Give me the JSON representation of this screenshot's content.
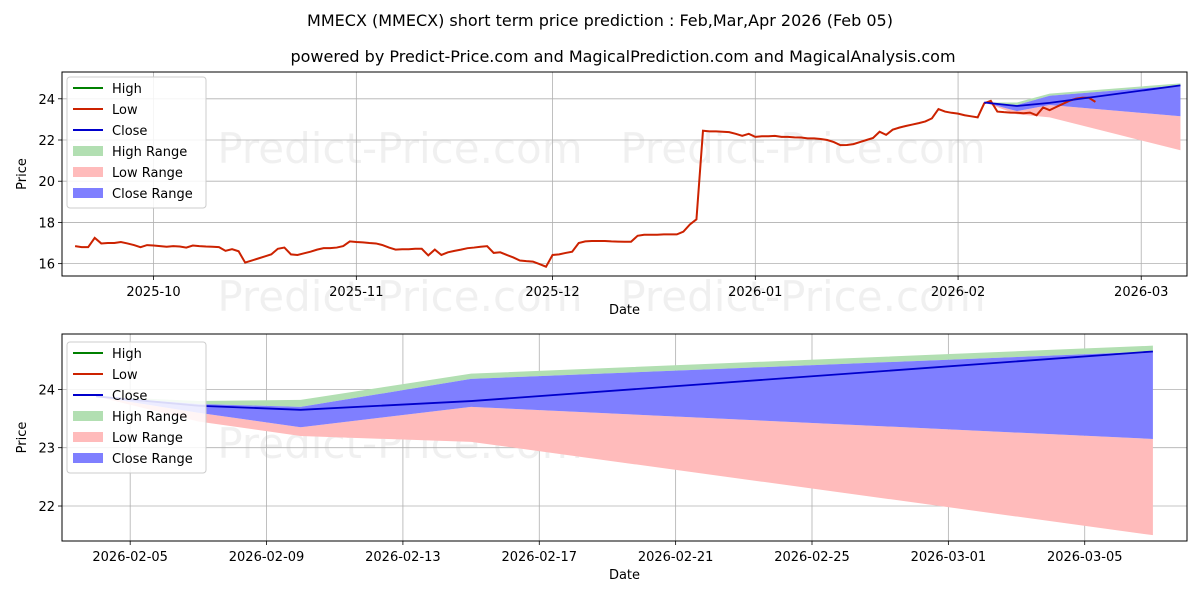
{
  "title": "MMECX (MMECX) short term price prediction : Feb,Mar,Apr 2026 (Feb 05)",
  "subtitle": "powered by Predict-Price.com and MagicalPrediction.com and MagicalAnalysis.com",
  "watermark": "Predict-Price.com",
  "colors": {
    "high": "#008000",
    "low": "#d62728",
    "low_line": "#cc2200",
    "close": "#0000cc",
    "high_range": "#b2dfb2",
    "low_range": "#ffbbbb",
    "close_range": "#7f7fff"
  },
  "legend": [
    "High",
    "Low",
    "Close",
    "High Range",
    "Low Range",
    "Close Range"
  ],
  "chart_data": [
    {
      "type": "line",
      "name": "overview",
      "xlabel": "Date",
      "ylabel": "Price",
      "x_start": "2025-09-17",
      "x_end": "2026-03-08",
      "ylim": [
        15.4,
        25.3
      ],
      "y_ticks": [
        16,
        18,
        20,
        22,
        24
      ],
      "x_ticks": [
        "2025-10",
        "2025-11",
        "2025-12",
        "2026-01",
        "2026-02",
        "2026-03"
      ],
      "x_tick_dates": [
        "2025-10-01",
        "2025-11-01",
        "2025-12-01",
        "2026-01-01",
        "2026-02-01",
        "2026-03-01"
      ],
      "history_start": "2025-09-19",
      "low_history": [
        16.85,
        16.8,
        16.8,
        17.25,
        16.98,
        17.0,
        17.0,
        17.05,
        16.98,
        16.9,
        16.8,
        16.9,
        16.88,
        16.85,
        16.82,
        16.85,
        16.83,
        16.78,
        16.88,
        16.85,
        16.83,
        16.82,
        16.8,
        16.62,
        16.7,
        16.6,
        16.05,
        16.15,
        16.25,
        16.35,
        16.45,
        16.72,
        16.78,
        16.45,
        16.42,
        16.5,
        16.58,
        16.68,
        16.75,
        16.75,
        16.78,
        16.85,
        17.08,
        17.05,
        17.03,
        17.0,
        16.98,
        16.9,
        16.78,
        16.68,
        16.7,
        16.7,
        16.72,
        16.72,
        16.4,
        16.68,
        16.42,
        16.55,
        16.62,
        16.68,
        16.75,
        16.78,
        16.82,
        16.85,
        16.52,
        16.55,
        16.42,
        16.3,
        16.15,
        16.12,
        16.1,
        15.98,
        15.85,
        16.42,
        16.45,
        16.52,
        16.58,
        17.0,
        17.08,
        17.1,
        17.1,
        17.1,
        17.08,
        17.07,
        17.06,
        17.06,
        17.35,
        17.4,
        17.4,
        17.4,
        17.42,
        17.42,
        17.42,
        17.55,
        17.9,
        18.15,
        22.45,
        22.42,
        22.42,
        22.4,
        22.38,
        22.3,
        22.2,
        22.3,
        22.15,
        22.18,
        22.18,
        22.2,
        22.15,
        22.15,
        22.13,
        22.12,
        22.08,
        22.08,
        22.05,
        22.0,
        21.9,
        21.75,
        21.76,
        21.8,
        21.9,
        22.0,
        22.1,
        22.4,
        22.25,
        22.5,
        22.6,
        22.68,
        22.75,
        22.82,
        22.9,
        23.05,
        23.5,
        23.38,
        23.32,
        23.28,
        23.2,
        23.15,
        23.1,
        23.78,
        23.9,
        23.38,
        23.35,
        23.33,
        23.32,
        23.3,
        23.33,
        23.2,
        23.58,
        23.45,
        23.6,
        23.75,
        23.9,
        24.0,
        24.05,
        24.05,
        23.85
      ],
      "forecast": {
        "dates": [
          "2026-02-05",
          "2026-02-10",
          "2026-02-15",
          "2026-03-07"
        ],
        "close": [
          23.82,
          23.65,
          23.8,
          24.65
        ],
        "close_range_upper": [
          23.82,
          23.7,
          24.15,
          24.65
        ],
        "close_range_lower": [
          23.82,
          23.4,
          23.7,
          23.15
        ],
        "high_range_upper": [
          23.82,
          23.82,
          24.25,
          24.75
        ],
        "low_range_lower": [
          23.82,
          23.25,
          23.1,
          21.5
        ]
      }
    },
    {
      "type": "area",
      "name": "forecast detail",
      "xlabel": "Date",
      "ylabel": "Price",
      "x_start": "2026-02-03",
      "x_end": "2026-03-08",
      "ylim": [
        21.4,
        24.95
      ],
      "y_ticks": [
        22,
        23,
        24
      ],
      "x_ticks": [
        "2026-02-05",
        "2026-02-09",
        "2026-02-13",
        "2026-02-17",
        "2026-02-21",
        "2026-02-25",
        "2026-03-01",
        "2026-03-05"
      ],
      "dates": [
        "2026-02-04",
        "2026-02-07",
        "2026-02-10",
        "2026-02-15",
        "2026-03-07"
      ],
      "close": [
        23.88,
        23.72,
        23.65,
        23.8,
        24.65
      ],
      "close_range_upper": [
        23.88,
        23.75,
        23.7,
        24.18,
        24.65
      ],
      "close_range_lower": [
        23.88,
        23.6,
        23.35,
        23.7,
        23.15
      ],
      "high_range_upper": [
        23.88,
        23.8,
        23.82,
        24.27,
        24.75
      ],
      "low_range_lower": [
        23.88,
        23.45,
        23.2,
        23.1,
        21.5
      ]
    }
  ]
}
